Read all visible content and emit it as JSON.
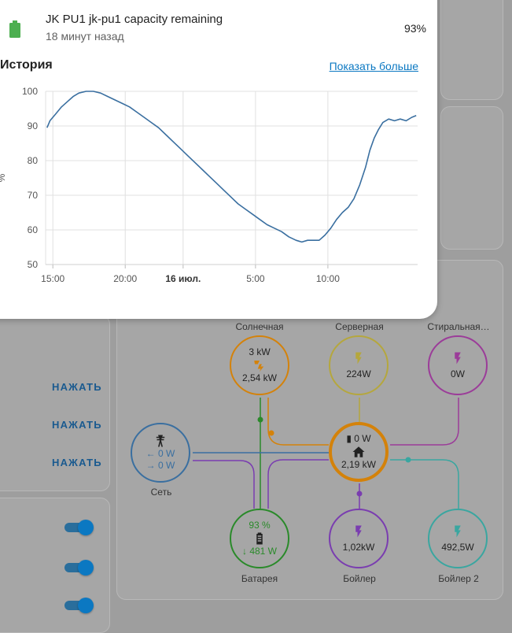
{
  "popup": {
    "entity_name": "JK PU1 jk-pu1 capacity remaining",
    "last_changed": "18 минут назад",
    "state": "93%",
    "history_title": "История",
    "show_more": "Показать больше",
    "icon": "battery-icon",
    "battery_color": "#4caf50"
  },
  "chart_data": {
    "type": "line",
    "ylabel": "%",
    "ylim": [
      50,
      100
    ],
    "yticks": [
      50,
      60,
      70,
      80,
      90,
      100
    ],
    "xticks": [
      "15:00",
      "20:00",
      "16 июл.",
      "5:00",
      "10:00"
    ],
    "xtick_hours": [
      15,
      20,
      24,
      29,
      34
    ],
    "xlim_hours": [
      14.5,
      38.2
    ],
    "grid": true,
    "series": [
      {
        "color": "#3a6fa0",
        "points": [
          [
            14.6,
            89.5
          ],
          [
            14.8,
            91.5
          ],
          [
            15.2,
            93.5
          ],
          [
            15.6,
            95.5
          ],
          [
            16.0,
            97.0
          ],
          [
            16.4,
            98.5
          ],
          [
            16.8,
            99.5
          ],
          [
            17.3,
            100
          ],
          [
            17.8,
            100
          ],
          [
            18.3,
            99.5
          ],
          [
            18.8,
            98.5
          ],
          [
            19.3,
            97.5
          ],
          [
            19.8,
            96.5
          ],
          [
            20.3,
            95.5
          ],
          [
            20.8,
            94.0
          ],
          [
            21.3,
            92.5
          ],
          [
            21.8,
            91.0
          ],
          [
            22.3,
            89.5
          ],
          [
            22.8,
            87.5
          ],
          [
            23.3,
            85.5
          ],
          [
            23.8,
            83.5
          ],
          [
            24.3,
            81.5
          ],
          [
            24.8,
            79.5
          ],
          [
            25.3,
            77.5
          ],
          [
            25.8,
            75.5
          ],
          [
            26.3,
            73.5
          ],
          [
            26.8,
            71.5
          ],
          [
            27.3,
            69.5
          ],
          [
            27.8,
            67.5
          ],
          [
            28.3,
            66.0
          ],
          [
            28.8,
            64.5
          ],
          [
            29.3,
            63.0
          ],
          [
            29.8,
            61.5
          ],
          [
            30.3,
            60.5
          ],
          [
            30.8,
            59.5
          ],
          [
            31.3,
            58.0
          ],
          [
            31.8,
            57.0
          ],
          [
            32.2,
            56.5
          ],
          [
            32.6,
            57.0
          ],
          [
            33.0,
            57.0
          ],
          [
            33.4,
            57.0
          ],
          [
            33.8,
            58.5
          ],
          [
            34.2,
            60.5
          ],
          [
            34.6,
            63.0
          ],
          [
            35.0,
            65.0
          ],
          [
            35.4,
            66.5
          ],
          [
            35.8,
            69.0
          ],
          [
            36.2,
            73.0
          ],
          [
            36.6,
            78.0
          ],
          [
            36.9,
            83.0
          ],
          [
            37.2,
            86.5
          ],
          [
            37.5,
            89.0
          ],
          [
            37.8,
            91.0
          ],
          [
            38.2,
            92.0
          ],
          [
            38.6,
            91.5
          ],
          [
            39.0,
            92.0
          ],
          [
            39.4,
            91.5
          ],
          [
            39.8,
            92.5
          ],
          [
            40.1,
            93.0
          ]
        ]
      }
    ]
  },
  "background": {
    "press_buttons": [
      "НАЖАТЬ",
      "НАЖАТЬ",
      "НАЖАТЬ"
    ]
  },
  "energy": {
    "solar": {
      "label": "Солнечная",
      "top": "3 kW",
      "value": "2,54 kW",
      "color": "#d4820a"
    },
    "server": {
      "label": "Серверная",
      "value": "224W",
      "color": "#b5a73d"
    },
    "washer": {
      "label": "Стиральная…",
      "value": "0W",
      "color": "#9b3c99"
    },
    "grid": {
      "label": "Сеть",
      "in": "0 W",
      "out": "0 W",
      "color": "#3a6fa0",
      "line_color": "#7a3db0"
    },
    "home": {
      "top": "0 W",
      "value": "2,19 kW",
      "color": "#d4820a"
    },
    "battery": {
      "label": "Батарея",
      "percent": "93 %",
      "value": "481 W",
      "color": "#2a8a2a"
    },
    "boiler": {
      "label": "Бойлер",
      "value": "1,02kW",
      "color": "#7a3db0"
    },
    "boiler2": {
      "label": "Бойлер 2",
      "value": "492,5W",
      "color": "#3aa6a0"
    }
  }
}
